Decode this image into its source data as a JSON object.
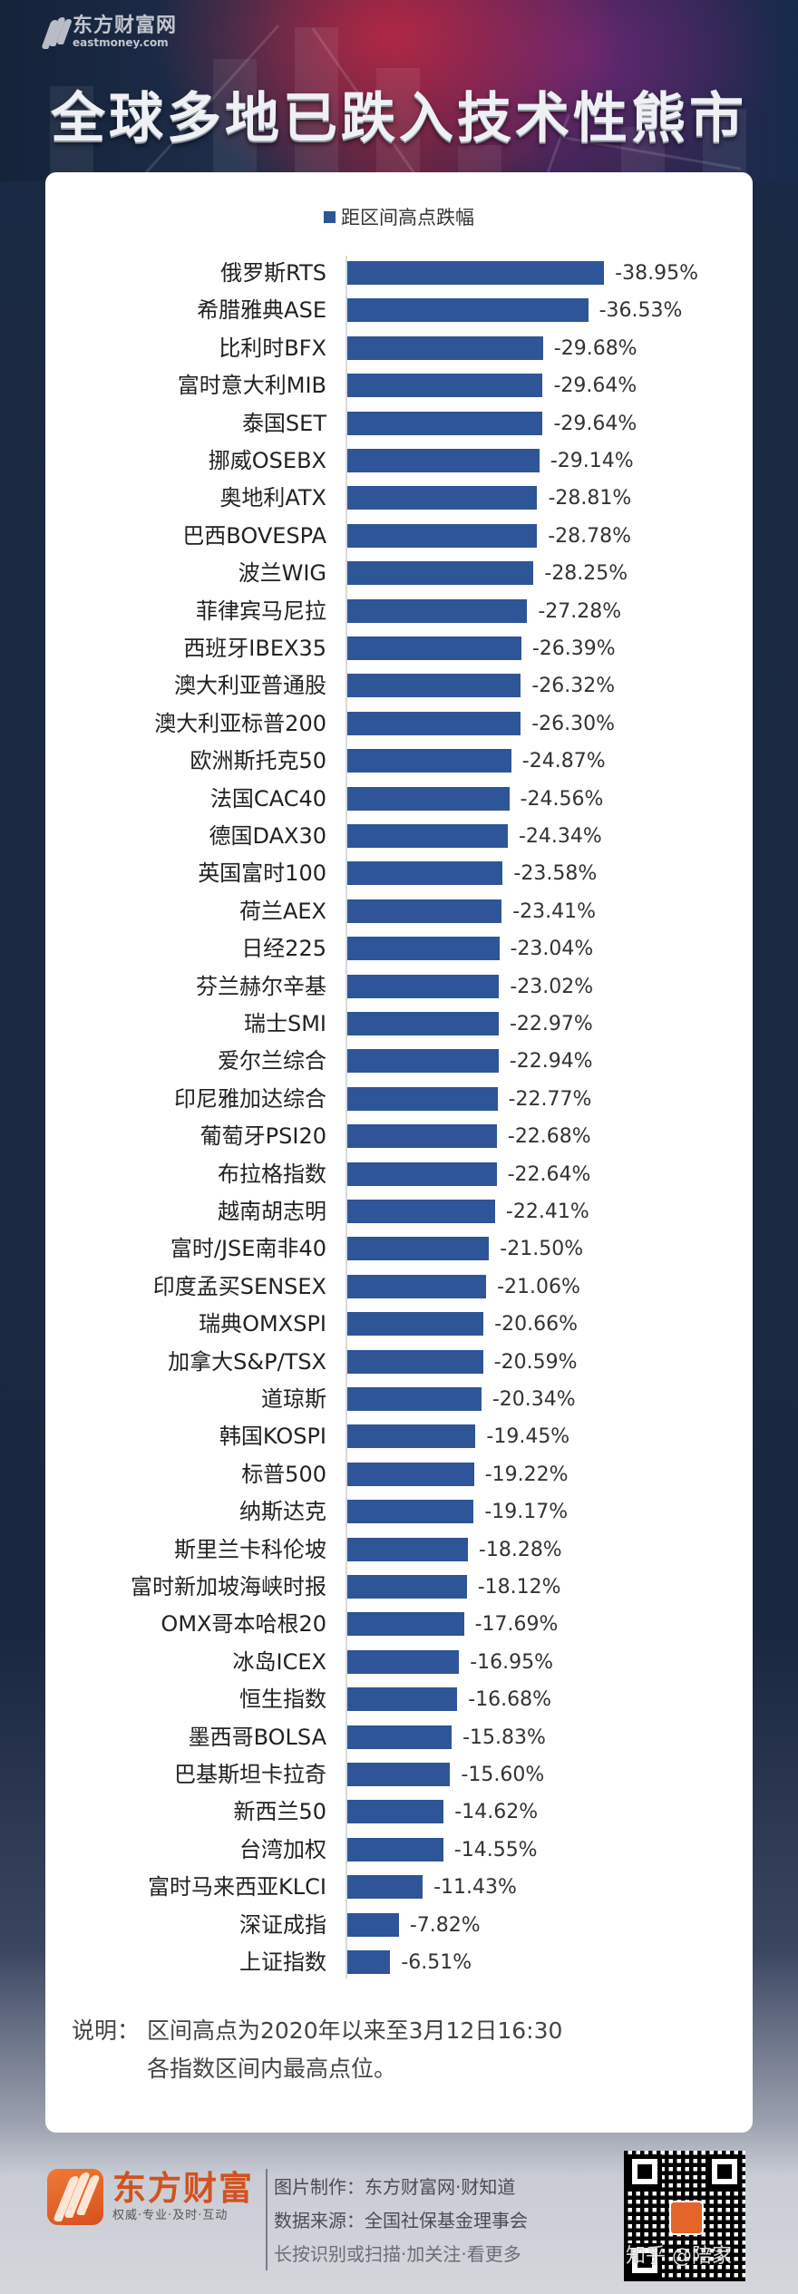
{
  "header": {
    "logo_cn": "东方财富网",
    "logo_en": "eastmoney.com",
    "title": "全球多地已跌入技术性熊市"
  },
  "legend": {
    "label": "距区间高点跌幅",
    "color": "#2e5597"
  },
  "chart_data": {
    "type": "bar",
    "orientation": "horizontal",
    "title": "全球多地已跌入技术性熊市",
    "legend": [
      "距区间高点跌幅"
    ],
    "legend_position": "top",
    "grid": false,
    "xlabel": "",
    "ylabel": "",
    "unit": "%",
    "bar_color": "#2e5597",
    "categories": [
      "俄罗斯RTS",
      "希腊雅典ASE",
      "比利时BFX",
      "富时意大利MIB",
      "泰国SET",
      "挪威OSEBX",
      "奥地利ATX",
      "巴西BOVESPA",
      "波兰WIG",
      "菲律宾马尼拉",
      "西班牙IBEX35",
      "澳大利亚普通股",
      "澳大利亚标普200",
      "欧洲斯托克50",
      "法国CAC40",
      "德国DAX30",
      "英国富时100",
      "荷兰AEX",
      "日经225",
      "芬兰赫尔辛基",
      "瑞士SMI",
      "爱尔兰综合",
      "印尼雅加达综合",
      "葡萄牙PSI20",
      "布拉格指数",
      "越南胡志明",
      "富时/JSE南非40",
      "印度孟买SENSEX",
      "瑞典OMXSPI",
      "加拿大S&P/TSX",
      "道琼斯",
      "韩国KOSPI",
      "标普500",
      "纳斯达克",
      "斯里兰卡科伦坡",
      "富时新加坡海峡时报",
      "OMX哥本哈根20",
      "冰岛ICEX",
      "恒生指数",
      "墨西哥BOLSA",
      "巴基斯坦卡拉奇",
      "新西兰50",
      "台湾加权",
      "富时马来西亚KLCI",
      "深证成指",
      "上证指数"
    ],
    "series": [
      {
        "name": "距区间高点跌幅",
        "values": [
          -38.95,
          -36.53,
          -29.68,
          -29.64,
          -29.64,
          -29.14,
          -28.81,
          -28.78,
          -28.25,
          -27.28,
          -26.39,
          -26.32,
          -26.3,
          -24.87,
          -24.56,
          -24.34,
          -23.58,
          -23.41,
          -23.04,
          -23.02,
          -22.97,
          -22.94,
          -22.77,
          -22.68,
          -22.64,
          -22.41,
          -21.5,
          -21.06,
          -20.66,
          -20.59,
          -20.34,
          -19.45,
          -19.22,
          -19.17,
          -18.28,
          -18.12,
          -17.69,
          -16.95,
          -16.68,
          -15.83,
          -15.6,
          -14.62,
          -14.55,
          -11.43,
          -7.82,
          -6.51
        ]
      }
    ],
    "value_labels": [
      "-38.95%",
      "-36.53%",
      "-29.68%",
      "-29.64%",
      "-29.64%",
      "-29.14%",
      "-28.81%",
      "-28.78%",
      "-28.25%",
      "-27.28%",
      "-26.39%",
      "-26.32%",
      "-26.30%",
      "-24.87%",
      "-24.56%",
      "-24.34%",
      "-23.58%",
      "-23.41%",
      "-23.04%",
      "-23.02%",
      "-22.97%",
      "-22.94%",
      "-22.77%",
      "-22.68%",
      "-22.64%",
      "-22.41%",
      "-21.50%",
      "-21.06%",
      "-20.66%",
      "-20.59%",
      "-20.34%",
      "-19.45%",
      "-19.22%",
      "-19.17%",
      "-18.28%",
      "-18.12%",
      "-17.69%",
      "-16.95%",
      "-16.68%",
      "-15.83%",
      "-15.60%",
      "-14.62%",
      "-14.55%",
      "-11.43%",
      "-7.82%",
      "-6.51%"
    ]
  },
  "note": {
    "key": "说明：",
    "line1": "区间高点为2020年以来至3月12日16:30",
    "line2": "各指数区间内最高点位。"
  },
  "footer": {
    "brand": "东方财富",
    "slogan": "权威·专业·及时·互动",
    "credits": [
      "图片制作：东方财富网·财知道",
      "数据来源：全国社保基金理事会",
      "长按识别或扫描·加关注·看更多"
    ],
    "watermark": "知乎 @陪家"
  }
}
